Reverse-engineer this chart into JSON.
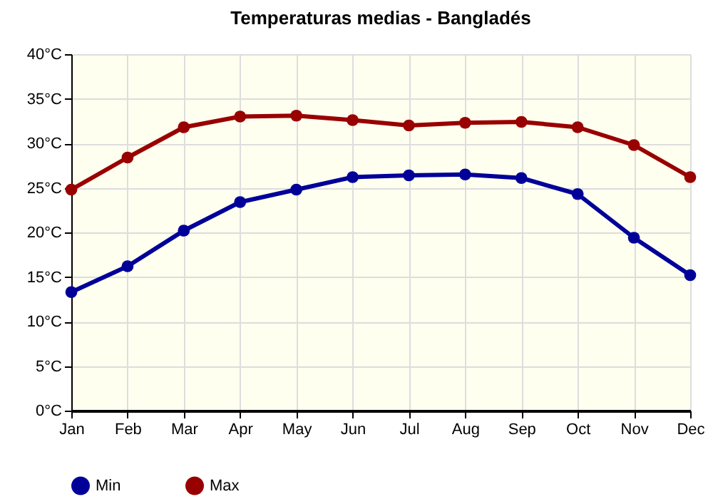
{
  "chart_data": {
    "type": "line",
    "title": "Temperaturas medias - Bangladés",
    "categories": [
      "Jan",
      "Feb",
      "Mar",
      "Apr",
      "May",
      "Jun",
      "Jul",
      "Aug",
      "Sep",
      "Oct",
      "Nov",
      "Dec"
    ],
    "series": [
      {
        "name": "Min",
        "color": "#000099",
        "values": [
          13.3,
          16.2,
          20.2,
          23.4,
          24.8,
          26.2,
          26.4,
          26.5,
          26.1,
          24.3,
          19.4,
          15.2
        ]
      },
      {
        "name": "Max",
        "color": "#990000",
        "values": [
          24.8,
          28.4,
          31.8,
          33.0,
          33.1,
          32.6,
          32.0,
          32.3,
          32.4,
          31.8,
          29.8,
          26.2
        ]
      }
    ],
    "ylim": [
      0,
      40
    ],
    "yticks": [
      {
        "value": 0,
        "label": "0°C"
      },
      {
        "value": 5,
        "label": "5°C"
      },
      {
        "value": 10,
        "label": "10°C"
      },
      {
        "value": 15,
        "label": "15°C"
      },
      {
        "value": 20,
        "label": "20°C"
      },
      {
        "value": 25,
        "label": "25°C"
      },
      {
        "value": 30,
        "label": "30°C"
      },
      {
        "value": 35,
        "label": "35°C"
      },
      {
        "value": 40,
        "label": "40°C"
      }
    ],
    "grid": true,
    "legend": "bottom left",
    "marker": "circle",
    "line_style": "solid"
  }
}
